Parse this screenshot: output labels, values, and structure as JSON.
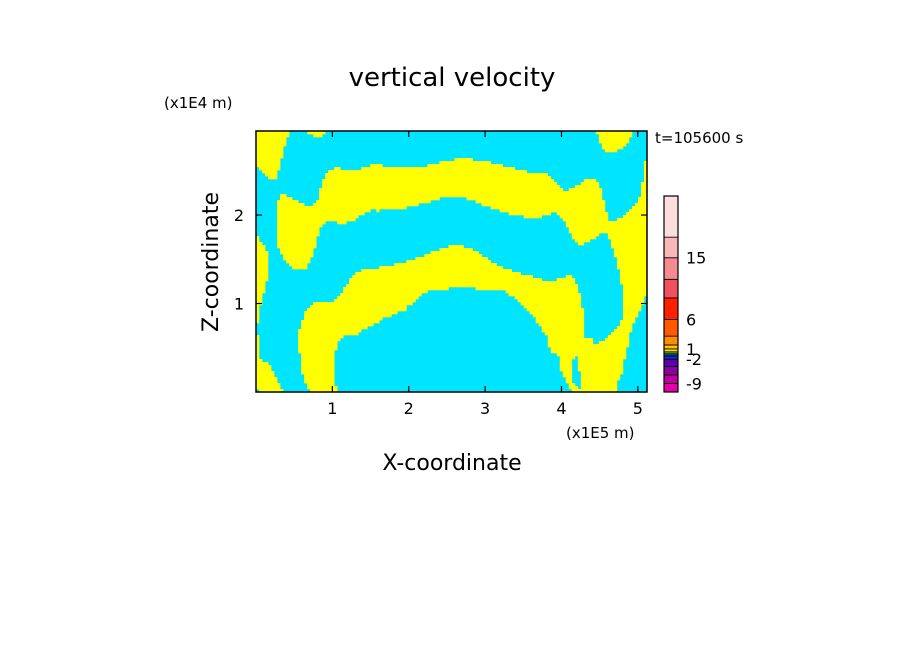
{
  "chart_data": {
    "type": "heatmap",
    "title": "vertical velocity",
    "xlabel": "X-coordinate",
    "ylabel": "Z-coordinate",
    "x_units": "(x1E5 m)",
    "y_units": "(x1E4 m)",
    "time_label": "t=105600 s",
    "xlim": [
      0,
      5.12
    ],
    "ylim": [
      0,
      2.95
    ],
    "x_ticks": [
      1,
      2,
      3,
      4,
      5
    ],
    "x_tick_labels": [
      "1",
      "2",
      "3",
      "4",
      "5"
    ],
    "y_ticks": [
      1,
      2
    ],
    "y_tick_labels": [
      "1",
      "2"
    ],
    "colorbar": {
      "levels": [
        -12,
        -9,
        -6,
        -4,
        -2,
        -1,
        -0.5,
        0,
        0.5,
        1,
        2,
        4,
        6,
        9,
        12,
        15,
        18,
        24
      ],
      "colors": [
        "#e600a8",
        "#c0009e",
        "#8c00a0",
        "#5a00a8",
        "#1a2ad8",
        "#0088ff",
        "#00e5ff",
        "#ffff00",
        "#ffe000",
        "#ffc400",
        "#ff8c00",
        "#ff5a00",
        "#ff2000",
        "#f05060",
        "#f58a90",
        "#f8b8b8",
        "#fcdedc"
      ],
      "tick_values": [
        -9,
        -2,
        1,
        6,
        15
      ],
      "tick_labels": [
        "-9",
        "-2",
        "1",
        "6",
        "15"
      ]
    },
    "field_values_present": [
      -0.5,
      0.5
    ],
    "field_colors": {
      "negative": "#00e5ff",
      "positive": "#ffff00"
    },
    "grid": false,
    "legend": "right"
  }
}
